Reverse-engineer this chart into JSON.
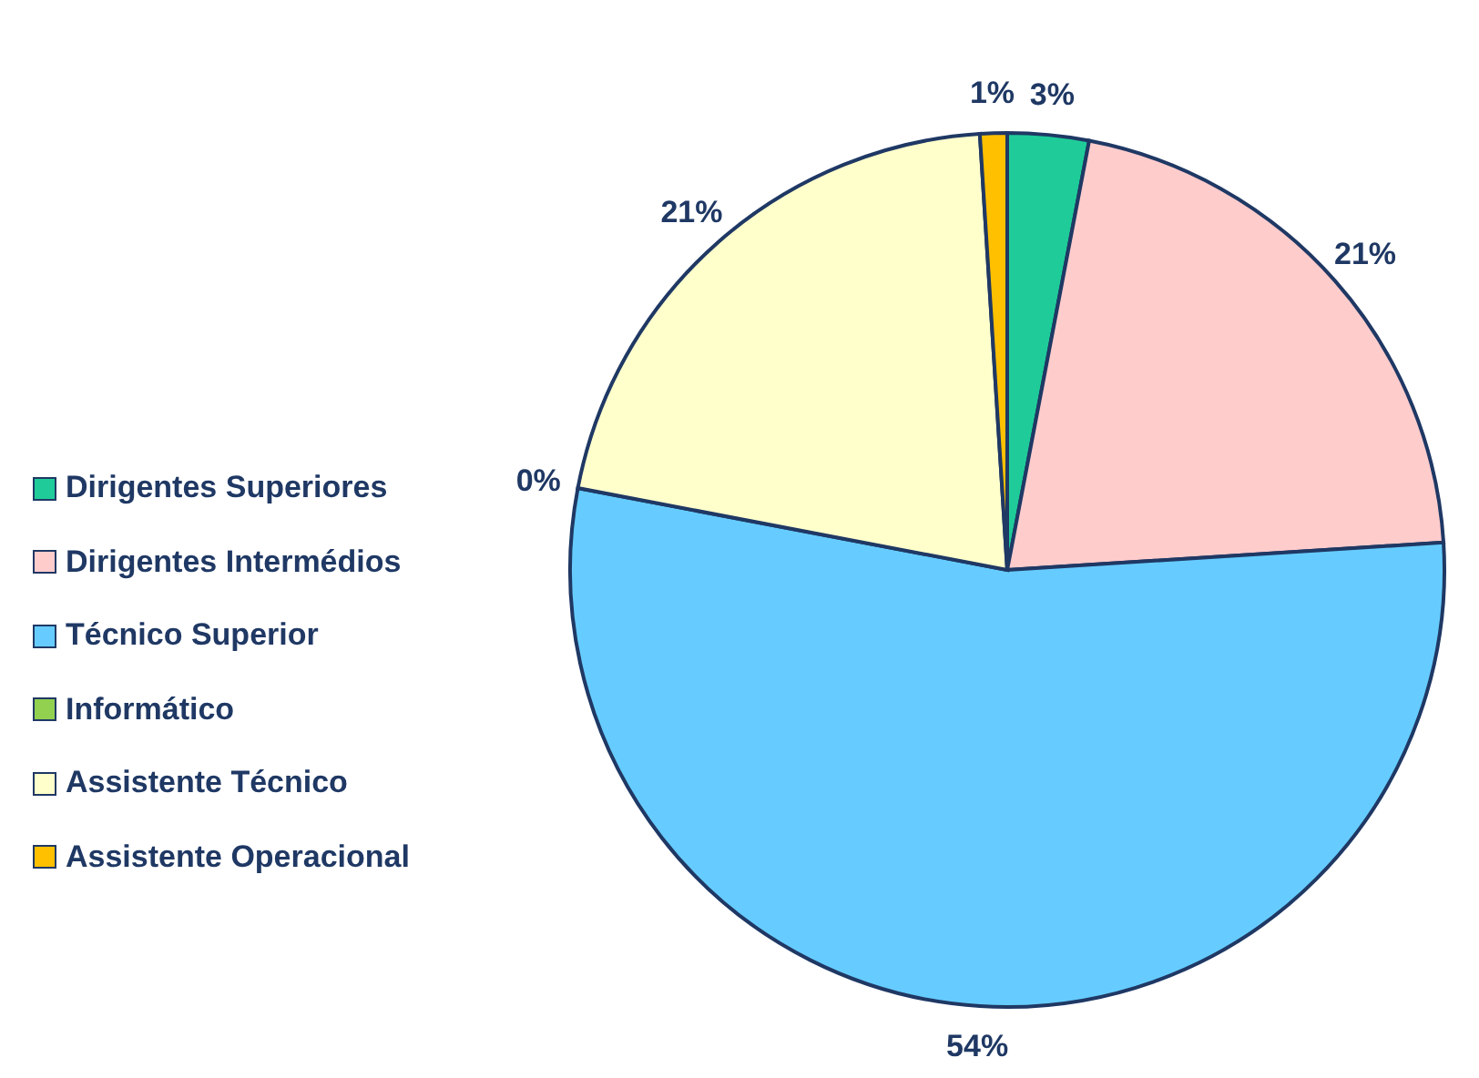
{
  "chart_data": {
    "type": "pie",
    "categories": [
      "Dirigentes Superiores",
      "Dirigentes Intermédios",
      "Técnico Superior",
      "Informático",
      "Assistente Técnico",
      "Assistente Operacional"
    ],
    "values": [
      3,
      21,
      54,
      0,
      21,
      1
    ],
    "colors": [
      "#1fcc99",
      "#ffcccc",
      "#66ccff",
      "#92d050",
      "#ffffcc",
      "#ffc000"
    ],
    "value_labels": [
      "3%",
      "21%",
      "54%",
      "0%",
      "21%",
      "1%"
    ],
    "legend": "left"
  }
}
